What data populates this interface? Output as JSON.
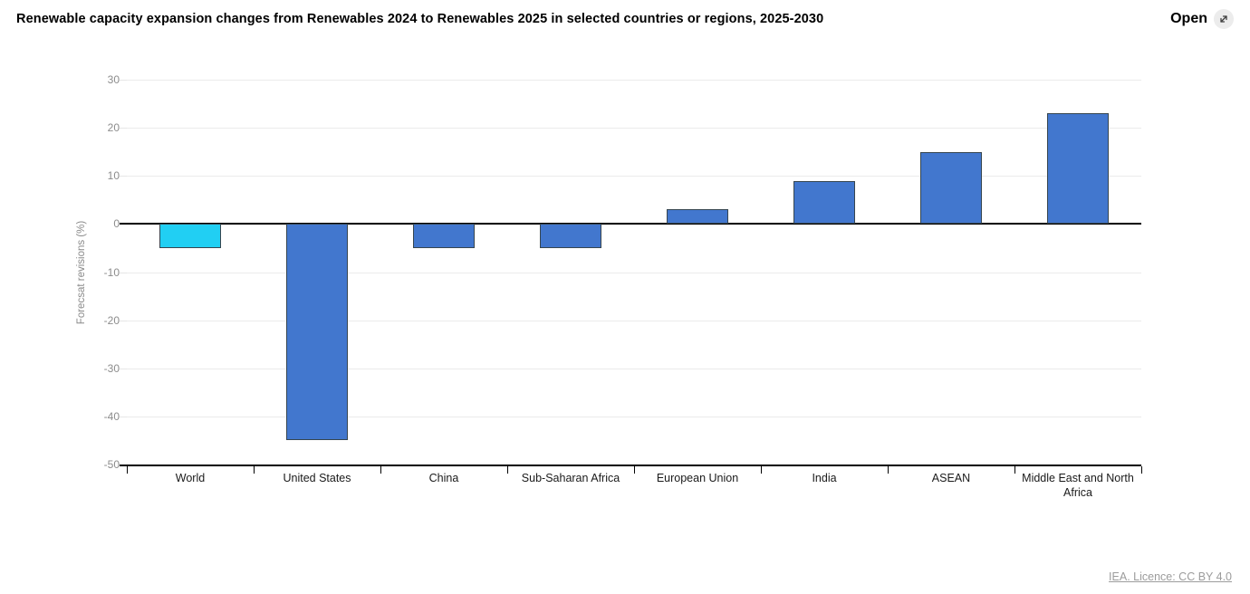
{
  "header": {
    "title": "Renewable capacity expansion changes from Renewables 2024 to Renewables 2025 in selected countries or regions, 2025-2030",
    "open_button": {
      "label": "Open",
      "icon": "expand-diagonal-icon"
    }
  },
  "chart_data": {
    "type": "bar",
    "title": "Renewable capacity expansion changes from Renewables 2024 to Renewables 2025 in selected countries or regions, 2025-2030",
    "categories": [
      "World",
      "United States",
      "China",
      "Sub-Saharan Africa",
      "European Union",
      "India",
      "ASEAN",
      "Middle East and North Africa"
    ],
    "values": [
      -5,
      -45,
      -5,
      -5,
      3,
      9,
      15,
      23
    ],
    "xlabel": "",
    "ylabel": "Forecsat revisions (%)",
    "ylim": [
      -50,
      30
    ],
    "yticks": [
      30,
      20,
      10,
      0,
      -10,
      -20,
      -30,
      -40,
      -50
    ],
    "grid": true,
    "legend": false,
    "colors": {
      "highlight_bar": "#21CFF3",
      "default_bar": "#4277CE",
      "bar_border": "#36454F",
      "highlight_index": 0,
      "gridline": "#ebebeb",
      "zero_line": "#000000",
      "tick_text": "#8c8c8c"
    }
  },
  "footer": {
    "license_link": "IEA. Licence: CC BY 4.0"
  }
}
